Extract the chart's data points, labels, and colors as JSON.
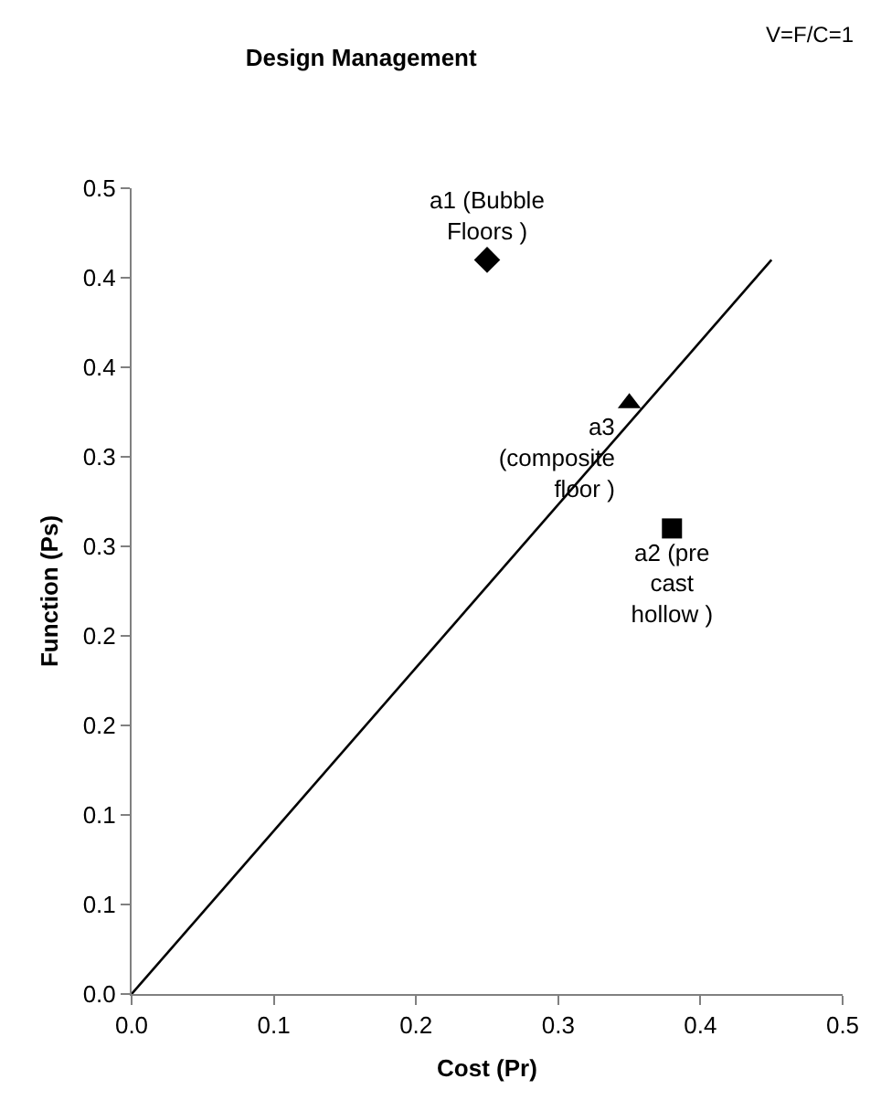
{
  "chart_data": {
    "type": "scatter",
    "title": "Design Management",
    "xlabel": "Cost (Pr)",
    "ylabel": "Function (Ps)",
    "annotations": [
      "V=F/C=1"
    ],
    "xlim": [
      0,
      0.5
    ],
    "xticks": [
      {
        "value": 0,
        "label": "0.0"
      },
      {
        "value": 0.1,
        "label": "0.1"
      },
      {
        "value": 0.2,
        "label": "0.2"
      },
      {
        "value": 0.3,
        "label": "0.3"
      },
      {
        "value": 0.4,
        "label": "0.4"
      },
      {
        "value": 0.5,
        "label": "0.5"
      }
    ],
    "ylim": [
      0,
      0.45
    ],
    "yticks": [
      {
        "value": 0,
        "label": "0.0"
      },
      {
        "value": 0.05,
        "label": "0.1"
      },
      {
        "value": 0.1,
        "label": "0.1"
      },
      {
        "value": 0.15,
        "label": "0.2"
      },
      {
        "value": 0.2,
        "label": "0.2"
      },
      {
        "value": 0.25,
        "label": "0.3"
      },
      {
        "value": 0.3,
        "label": "0.3"
      },
      {
        "value": 0.35,
        "label": "0.4"
      },
      {
        "value": 0.4,
        "label": "0.4"
      },
      {
        "value": 0.45,
        "label": "0.5"
      }
    ],
    "grid": false,
    "legend": false,
    "series": [
      {
        "type": "line",
        "color": "#000000",
        "x": [
          0,
          0.45
        ],
        "values": [
          0,
          0.41
        ],
        "line_style": "solid",
        "marker": "none"
      },
      {
        "name": "a1 (Bubble Floors )",
        "color": "#000000",
        "x": [
          0.25
        ],
        "values": [
          0.41
        ],
        "marker": "diamond"
      },
      {
        "name": "a2 (pre cast hollow )",
        "color": "#000000",
        "x": [
          0.38
        ],
        "values": [
          0.26
        ],
        "marker": "square"
      },
      {
        "name": "a3 (composite floor )",
        "color": "#000000",
        "x": [
          0.35
        ],
        "values": [
          0.33
        ],
        "marker": "triangle"
      }
    ]
  }
}
